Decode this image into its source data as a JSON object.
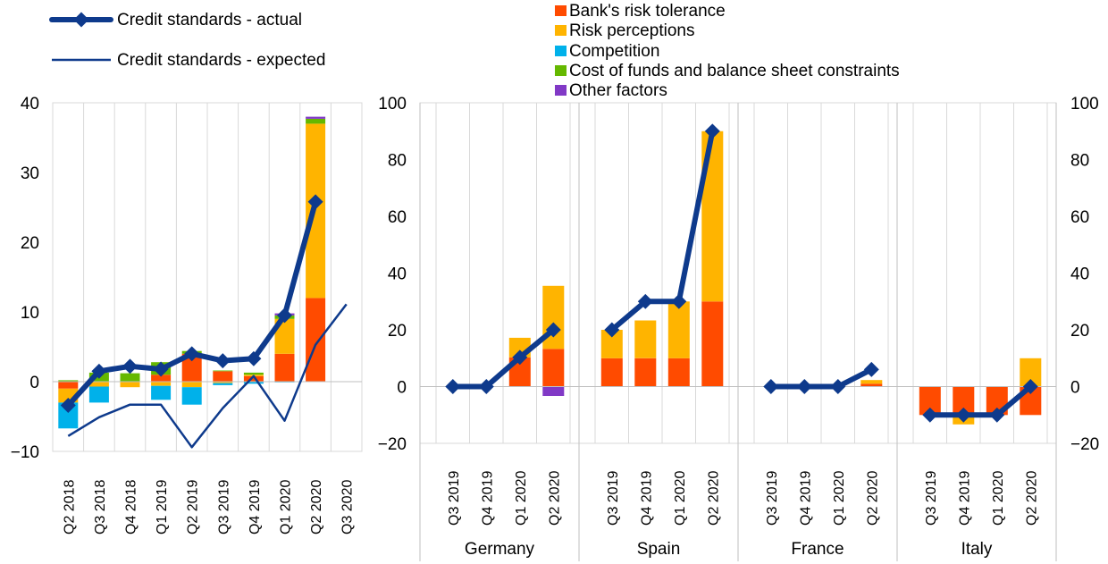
{
  "legend": {
    "lines": [
      {
        "label": "Credit standards - actual",
        "color": "#0e3a8c"
      },
      {
        "label": "Credit standards - expected",
        "color": "#0e3a8c"
      }
    ],
    "bars": [
      {
        "label": "Bank's risk tolerance",
        "color": "#ff4b00"
      },
      {
        "label": "Risk perceptions",
        "color": "#ffb400"
      },
      {
        "label": "Competition",
        "color": "#00b1ea"
      },
      {
        "label": "Cost of funds and balance sheet constraints",
        "color": "#65b800"
      },
      {
        "label": "Other factors",
        "color": "#8139c6"
      }
    ]
  },
  "chart_data": [
    {
      "type": "bar",
      "stacked": true,
      "categories": [
        "Q2 2018",
        "Q3 2018",
        "Q4 2018",
        "Q1 2019",
        "Q2 2019",
        "Q3 2019",
        "Q4 2019",
        "Q1 2020",
        "Q2 2020",
        "Q3 2020"
      ],
      "ylim": [
        -10,
        40
      ],
      "yticks": [
        -10,
        0,
        10,
        20,
        30,
        40
      ],
      "grid": true,
      "series": [
        {
          "name": "Bank's risk tolerance",
          "values": [
            -1.0,
            0,
            0,
            1.0,
            4.0,
            1.5,
            0.8,
            4.0,
            12.0,
            null
          ]
        },
        {
          "name": "Risk perceptions",
          "values": [
            -2.0,
            -0.7,
            -0.8,
            -0.6,
            -0.8,
            -0.2,
            0.2,
            5.0,
            25.0,
            null
          ]
        },
        {
          "name": "Competition",
          "values": [
            -3.7,
            -2.3,
            0,
            -2.0,
            -2.5,
            -0.3,
            -0.3,
            -0.1,
            0,
            null
          ]
        },
        {
          "name": "Cost of funds and balance sheet constraints",
          "values": [
            0.2,
            1.3,
            1.2,
            1.8,
            0.4,
            0.1,
            0.3,
            0.5,
            0.7,
            null
          ]
        },
        {
          "name": "Other factors",
          "values": [
            0,
            0,
            0,
            0,
            0,
            0,
            0,
            0.3,
            0.3,
            null
          ]
        }
      ],
      "lines": [
        {
          "name": "Credit standards - actual",
          "values": [
            -3.4,
            1.5,
            2.2,
            1.8,
            4.0,
            3.0,
            3.3,
            9.5,
            25.8,
            null
          ]
        },
        {
          "name": "Credit standards - expected",
          "values": [
            -7.8,
            -5.1,
            -3.3,
            -3.3,
            -9.4,
            -3.8,
            0.8,
            -5.6,
            5.3,
            11.1
          ]
        }
      ]
    },
    {
      "type": "bar",
      "stacked": true,
      "groups": [
        "Germany",
        "Spain",
        "France",
        "Italy"
      ],
      "categories": [
        "Q3 2019",
        "Q4 2019",
        "Q1 2020",
        "Q2 2020"
      ],
      "ylim": [
        -20,
        100
      ],
      "yticks": [
        -20,
        0,
        20,
        40,
        60,
        80,
        100
      ],
      "grid": true,
      "data": [
        {
          "group": "Germany",
          "series": [
            {
              "name": "Bank's risk tolerance",
              "values": [
                0,
                0,
                10.3,
                13.3
              ]
            },
            {
              "name": "Risk perceptions",
              "values": [
                0,
                0,
                6.9,
                22.2
              ]
            },
            {
              "name": "Competition",
              "values": [
                0,
                0,
                0,
                0
              ]
            },
            {
              "name": "Cost of funds and balance sheet constraints",
              "values": [
                0,
                0,
                0,
                0
              ]
            },
            {
              "name": "Other factors",
              "values": [
                0,
                0,
                0,
                -3.3
              ]
            }
          ],
          "actual": [
            0,
            0,
            10.3,
            20
          ]
        },
        {
          "group": "Spain",
          "series": [
            {
              "name": "Bank's risk tolerance",
              "values": [
                10,
                10,
                10,
                30
              ]
            },
            {
              "name": "Risk perceptions",
              "values": [
                10,
                13.3,
                20,
                60
              ]
            },
            {
              "name": "Competition",
              "values": [
                0,
                0,
                0,
                0
              ]
            },
            {
              "name": "Cost of funds and balance sheet constraints",
              "values": [
                0,
                0,
                0,
                0
              ]
            },
            {
              "name": "Other factors",
              "values": [
                0,
                0,
                0,
                0
              ]
            }
          ],
          "actual": [
            20,
            30,
            30,
            90
          ]
        },
        {
          "group": "France",
          "series": [
            {
              "name": "Bank's risk tolerance",
              "values": [
                0,
                0,
                0,
                1.0
              ]
            },
            {
              "name": "Risk perceptions",
              "values": [
                0,
                0,
                0,
                1.3
              ]
            },
            {
              "name": "Competition",
              "values": [
                0,
                0,
                0,
                0
              ]
            },
            {
              "name": "Cost of funds and balance sheet constraints",
              "values": [
                0,
                0,
                0,
                0
              ]
            },
            {
              "name": "Other factors",
              "values": [
                0,
                0,
                0,
                0
              ]
            }
          ],
          "actual": [
            0,
            0,
            0,
            6
          ]
        },
        {
          "group": "Italy",
          "series": [
            {
              "name": "Bank's risk tolerance",
              "values": [
                -10,
                -10,
                -10,
                -10
              ]
            },
            {
              "name": "Risk perceptions",
              "values": [
                0,
                -3.3,
                0,
                10
              ]
            },
            {
              "name": "Competition",
              "values": [
                0,
                0,
                0,
                0
              ]
            },
            {
              "name": "Cost of funds and balance sheet constraints",
              "values": [
                0,
                0,
                0,
                0
              ]
            },
            {
              "name": "Other factors",
              "values": [
                0,
                0,
                0,
                0
              ]
            }
          ],
          "actual": [
            -10,
            -10,
            -10,
            0
          ]
        }
      ]
    }
  ]
}
